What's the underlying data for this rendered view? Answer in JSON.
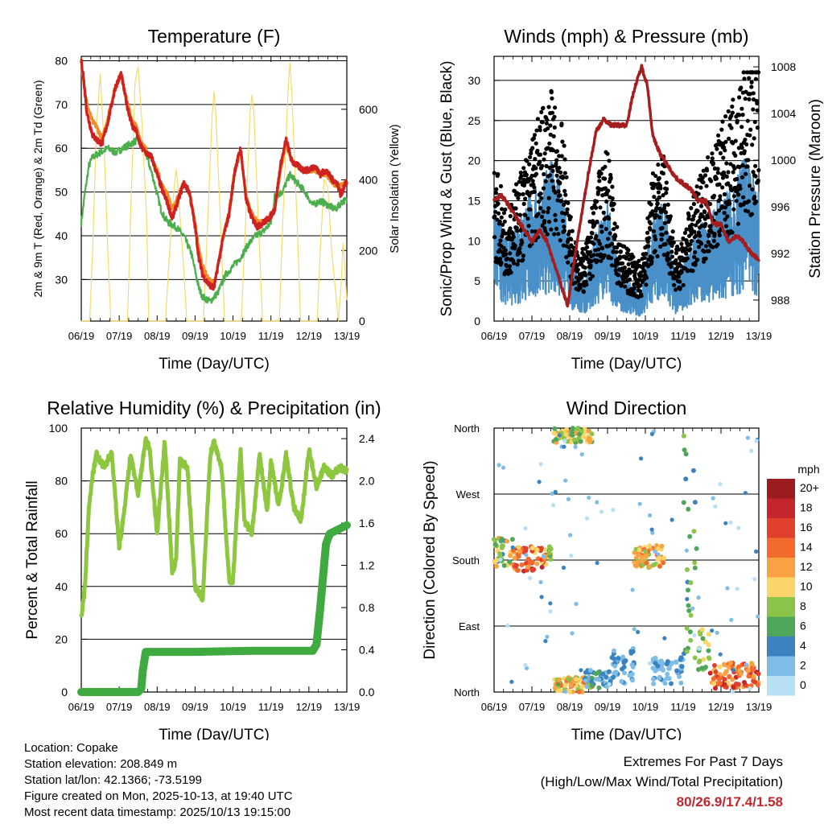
{
  "x_tick_labels": [
    "06/19",
    "07/19",
    "08/19",
    "09/19",
    "10/19",
    "11/19",
    "12/19",
    "13/19"
  ],
  "colors": {
    "temp2m": "#cc2222",
    "temp9m": "#f08c2a",
    "dewpoint": "#4cae4c",
    "solar": "#f5dc6a",
    "gust": "#000000",
    "wind": "#4a90c8",
    "pressure": "#a51d1d",
    "rh": "#8dc63f",
    "precip": "#3faa3f"
  },
  "chart_data": [
    {
      "id": "temperature",
      "type": "line",
      "title": "Temperature (F)",
      "xlabel": "Time (Day/UTC)",
      "ylabel_left": "2m & 9m T (Red, Orange) & 2m Td (Green)",
      "ylabel_right": "Solar Insolation (Yellow)",
      "ylim_left": [
        20.5,
        81
      ],
      "ylim_right": [
        0,
        750
      ],
      "yticks_left": [
        30,
        40,
        50,
        60,
        70,
        80
      ],
      "yticks_right": [
        0,
        200,
        400,
        600
      ],
      "series": [
        {
          "name": "2m T",
          "color_key": "temp2m",
          "x": [
            0,
            0.05,
            0.15,
            0.3,
            0.4,
            0.55,
            0.7,
            0.9,
            1.05,
            1.2,
            1.35,
            1.45,
            1.5,
            1.6,
            1.7,
            1.85,
            2.0,
            2.15,
            2.25,
            2.4,
            2.55,
            2.7,
            2.85,
            3.0,
            3.1,
            3.2,
            3.35,
            3.5,
            3.6,
            3.75,
            3.9,
            4.05,
            4.2,
            4.35,
            4.5,
            4.65,
            4.8,
            4.95,
            5.1,
            5.25,
            5.4,
            5.55,
            5.7,
            5.85,
            6.0,
            6.15,
            6.3,
            6.45,
            6.6,
            6.75,
            6.85,
            6.95,
            7.0
          ],
          "values": [
            80,
            77,
            68,
            63,
            62,
            61,
            66,
            74,
            77,
            70,
            65,
            64,
            62,
            60,
            59,
            58,
            54,
            50,
            48,
            44,
            48,
            52,
            50,
            42,
            35,
            31,
            29,
            28,
            33,
            40,
            45,
            55,
            60,
            48,
            44,
            42,
            43,
            44,
            46,
            56,
            62,
            57,
            56,
            55,
            55,
            56,
            54,
            55,
            53,
            52,
            49,
            52,
            52
          ]
        },
        {
          "name": "9m T",
          "color_key": "temp9m",
          "x": [
            0,
            0.05,
            0.15,
            0.3,
            0.4,
            0.55,
            0.7,
            0.9,
            1.05,
            1.2,
            1.35,
            1.45,
            1.6,
            1.85,
            2.0,
            2.15,
            2.25,
            2.4,
            2.55,
            2.7,
            2.85,
            3.0,
            3.1,
            3.2,
            3.35,
            3.5,
            3.6,
            3.75,
            3.9,
            4.05,
            4.2,
            4.35,
            4.5,
            4.65,
            4.8,
            4.95,
            5.1,
            5.25,
            5.4,
            5.55,
            5.85,
            6.15,
            6.45,
            6.75,
            7.0
          ],
          "values": [
            80,
            76,
            70,
            66,
            65,
            62,
            67,
            74,
            77,
            71,
            66,
            65,
            61,
            58,
            55,
            51,
            50,
            46,
            49,
            52,
            50,
            43,
            37,
            33,
            30,
            29,
            33,
            40,
            46,
            55,
            59,
            49,
            45,
            43,
            43,
            44,
            46,
            55,
            61,
            57,
            55,
            55,
            54,
            51,
            52
          ]
        },
        {
          "name": "2m Td",
          "color_key": "dewpoint",
          "x": [
            0,
            0.1,
            0.2,
            0.3,
            0.5,
            0.7,
            0.9,
            1.1,
            1.3,
            1.5,
            1.7,
            1.9,
            2.1,
            2.2,
            2.3,
            2.5,
            2.7,
            2.8,
            2.9,
            3.0,
            3.1,
            3.2,
            3.4,
            3.6,
            3.8,
            4.0,
            4.2,
            4.4,
            4.6,
            4.8,
            5.0,
            5.1,
            5.3,
            5.5,
            5.7,
            5.9,
            6.1,
            6.3,
            6.5,
            6.7,
            6.9,
            7.0
          ],
          "values": [
            43,
            50,
            56,
            58,
            59,
            60,
            59,
            60,
            61,
            62,
            59,
            53,
            46,
            44,
            43,
            42,
            40,
            38,
            36,
            32,
            28,
            26,
            25,
            27,
            31,
            33,
            35,
            38,
            40,
            41,
            43,
            49,
            50,
            54,
            52,
            50,
            47,
            48,
            47,
            46,
            48,
            48
          ]
        },
        {
          "name": "Solar",
          "color_key": "solar",
          "axis": "right",
          "x": [
            0,
            0.22,
            0.3,
            0.4,
            0.5,
            0.6,
            0.7,
            0.78,
            1.22,
            1.3,
            1.42,
            1.5,
            1.6,
            1.72,
            1.78,
            2.22,
            2.3,
            2.45,
            2.5,
            2.55,
            2.7,
            2.78,
            3.22,
            3.3,
            3.45,
            3.5,
            3.55,
            3.7,
            3.78,
            4.22,
            4.3,
            4.45,
            4.5,
            4.55,
            4.7,
            4.78,
            5.22,
            5.3,
            5.45,
            5.5,
            5.55,
            5.7,
            5.78,
            6.22,
            6.3,
            6.4,
            6.5,
            6.6,
            6.78,
            6.85,
            6.9,
            6.95,
            7.0
          ],
          "values": [
            0,
            0,
            200,
            550,
            700,
            500,
            200,
            0,
            0,
            300,
            680,
            720,
            560,
            300,
            0,
            0,
            150,
            380,
            430,
            380,
            150,
            0,
            0,
            200,
            580,
            650,
            580,
            200,
            0,
            0,
            200,
            590,
            640,
            590,
            200,
            0,
            0,
            250,
            650,
            730,
            650,
            250,
            0,
            0,
            200,
            400,
            380,
            200,
            0,
            100,
            220,
            150,
            60
          ]
        }
      ]
    },
    {
      "id": "winds",
      "type": "scatter",
      "title": "Winds (mph) & Pressure (mb)",
      "xlabel": "Time (Day/UTC)",
      "ylabel_left": "Sonic/Prop Wind & Gust (Blue, Black)",
      "ylabel_right": "Station Pressure (Maroon)",
      "ylim_left": [
        0,
        33
      ],
      "ylim_right": [
        986.2,
        1008.9
      ],
      "yticks_left": [
        0,
        5,
        10,
        15,
        20,
        25,
        30
      ],
      "yticks_right": [
        988,
        992,
        996,
        1000,
        1004,
        1008
      ],
      "series": [
        {
          "name": "Wind",
          "color_key": "wind",
          "x": [
            0,
            0.3,
            0.6,
            0.9,
            1.2,
            1.5,
            1.8,
            2.1,
            2.4,
            2.7,
            3.0,
            3.3,
            3.6,
            3.9,
            4.2,
            4.5,
            4.8,
            5.1,
            5.4,
            5.7,
            6.0,
            6.3,
            6.6,
            7.0
          ],
          "values": [
            9,
            6,
            7,
            9,
            10,
            12,
            10,
            4,
            3,
            7,
            9,
            4,
            3,
            2,
            8,
            9,
            3,
            5,
            7,
            8,
            9,
            10,
            12,
            10
          ]
        },
        {
          "name": "Gust",
          "color_key": "gust",
          "x": [
            0,
            0.3,
            0.6,
            0.9,
            1.2,
            1.5,
            1.8,
            2.1,
            2.4,
            2.7,
            3.0,
            3.3,
            3.6,
            3.9,
            4.2,
            4.5,
            4.8,
            5.1,
            5.4,
            5.7,
            6.0,
            6.3,
            6.6,
            7.0
          ],
          "values": [
            14,
            10,
            12,
            15,
            18,
            20,
            17,
            7,
            6,
            12,
            15,
            7,
            6,
            5,
            13,
            15,
            6,
            9,
            12,
            15,
            17,
            19,
            22,
            24
          ]
        },
        {
          "name": "Pressure",
          "color_key": "pressure",
          "axis": "right",
          "x": [
            0,
            0.2,
            0.4,
            0.6,
            0.8,
            1.0,
            1.2,
            1.4,
            1.6,
            1.8,
            1.95,
            2.1,
            2.3,
            2.5,
            2.7,
            2.9,
            3.1,
            3.3,
            3.5,
            3.7,
            3.9,
            4.05,
            4.2,
            4.4,
            4.6,
            4.8,
            5.0,
            5.2,
            5.4,
            5.6,
            5.8,
            6.0,
            6.2,
            6.4,
            6.6,
            6.8,
            7.0
          ],
          "values": [
            996.5,
            997,
            996,
            995,
            994,
            993,
            994,
            993,
            991,
            989,
            987.5,
            991,
            995,
            999,
            1002.5,
            1003.5,
            1003,
            1003,
            1003,
            1006,
            1008,
            1006.5,
            1002,
            1000.5,
            999.5,
            998.5,
            998,
            997.5,
            996.5,
            996.5,
            994.5,
            994.5,
            993,
            993.5,
            993,
            992,
            991.5
          ]
        }
      ]
    },
    {
      "id": "humidity",
      "type": "line",
      "title": "Relative Humidity (%) & Precipitation (in)",
      "xlabel": "Time (Day/UTC)",
      "ylabel_left": "Percent & Total Rainfall",
      "ylim_left": [
        0,
        100
      ],
      "ylim_right": [
        0,
        2.5
      ],
      "yticks_left": [
        0,
        20,
        40,
        60,
        80,
        100
      ],
      "yticks_right": [
        "0.0",
        "0.4",
        "0.8",
        "1.2",
        "1.6",
        "2.0",
        "2.4"
      ],
      "series": [
        {
          "name": "RH",
          "color_key": "rh",
          "x": [
            0,
            0.1,
            0.2,
            0.3,
            0.4,
            0.6,
            0.8,
            1.0,
            1.1,
            1.3,
            1.5,
            1.7,
            1.8,
            2.0,
            2.2,
            2.4,
            2.5,
            2.6,
            2.8,
            3.0,
            3.2,
            3.4,
            3.5,
            3.7,
            3.9,
            4.0,
            4.2,
            4.3,
            4.5,
            4.7,
            4.9,
            5.0,
            5.2,
            5.4,
            5.6,
            5.8,
            6.0,
            6.2,
            6.4,
            6.6,
            6.8,
            7.0
          ],
          "values": [
            28,
            40,
            70,
            82,
            90,
            85,
            91,
            55,
            65,
            90,
            75,
            96,
            92,
            60,
            95,
            45,
            50,
            88,
            85,
            40,
            35,
            90,
            95,
            85,
            42,
            42,
            92,
            65,
            60,
            90,
            68,
            88,
            70,
            90,
            70,
            65,
            92,
            78,
            85,
            82,
            85,
            84
          ]
        },
        {
          "name": "Precip",
          "color_key": "precip",
          "axis": "right",
          "x": [
            0,
            1.5,
            1.58,
            1.62,
            1.7,
            3.0,
            4.5,
            6.1,
            6.2,
            6.3,
            6.45,
            6.55,
            7.0
          ],
          "values": [
            0,
            0,
            0.03,
            0.2,
            0.38,
            0.38,
            0.39,
            0.39,
            0.45,
            0.8,
            1.4,
            1.5,
            1.58
          ]
        }
      ]
    },
    {
      "id": "direction",
      "type": "scatter",
      "title": "Wind Direction",
      "xlabel": "Time (Day/UTC)",
      "ylabel_left": "Direction (Colored By Speed)",
      "ylim_left": [
        0,
        360
      ],
      "ytick_values": [
        0,
        90,
        180,
        270,
        360
      ],
      "ytick_labels": [
        "North",
        "East",
        "South",
        "West",
        "North"
      ],
      "colorbar": {
        "title": "mph",
        "labels": [
          "20+",
          "18",
          "16",
          "14",
          "12",
          "10",
          "8",
          "6",
          "4",
          "2",
          "0"
        ],
        "colors": [
          "#9b1b1e",
          "#c4262b",
          "#e0402c",
          "#f26b2d",
          "#f9a243",
          "#fbd56a",
          "#8cc44a",
          "#4ea65a",
          "#3a82c0",
          "#7fbde6",
          "#b8e0f5"
        ]
      },
      "clusters": [
        {
          "x": [
            0.0,
            0.5
          ],
          "dir": [
            170,
            210
          ],
          "speed": [
            4,
            12
          ]
        },
        {
          "x": [
            0.5,
            1.4
          ],
          "dir": [
            165,
            200
          ],
          "speed": [
            10,
            18
          ]
        },
        {
          "x": [
            1.4,
            1.55
          ],
          "dir": [
            180,
            200
          ],
          "speed": [
            6,
            12
          ]
        },
        {
          "x": [
            1.55,
            2.6
          ],
          "dir": [
            340,
            360
          ],
          "speed": [
            6,
            12
          ]
        },
        {
          "x": [
            1.6,
            2.6
          ],
          "dir": [
            0,
            20
          ],
          "speed": [
            6,
            14
          ]
        },
        {
          "x": [
            2.4,
            3.0
          ],
          "dir": [
            5,
            30
          ],
          "speed": [
            2,
            6
          ]
        },
        {
          "x": [
            3.0,
            3.7
          ],
          "dir": [
            10,
            60
          ],
          "speed": [
            1,
            5
          ]
        },
        {
          "x": [
            3.7,
            4.5
          ],
          "dir": [
            170,
            200
          ],
          "speed": [
            8,
            14
          ]
        },
        {
          "x": [
            4.2,
            5.0
          ],
          "dir": [
            10,
            50
          ],
          "speed": [
            1,
            4
          ]
        },
        {
          "x": [
            5.0,
            5.4
          ],
          "dir": [
            40,
            360
          ],
          "speed": [
            3,
            8
          ]
        },
        {
          "x": [
            5.4,
            5.7
          ],
          "dir": [
            30,
            90
          ],
          "speed": [
            6,
            10
          ]
        },
        {
          "x": [
            5.7,
            7.0
          ],
          "dir": [
            5,
            40
          ],
          "speed": [
            10,
            18
          ]
        }
      ]
    }
  ],
  "info": {
    "location": "Location: Copake",
    "elevation": "Station elevation: 208.849 m",
    "latlon": "Station lat/lon: 42.1366; -73.5199",
    "created": "Figure created on Mon, 2025-10-13, at 19:40 UTC",
    "recent": "Most recent data timestamp: 2025/10/13 19:15:00"
  },
  "extremes": {
    "title": "Extremes For Past 7 Days",
    "subtitle": "(High/Low/Max Wind/Total Precipitation)",
    "values": "80/26.9/17.4/1.58"
  }
}
